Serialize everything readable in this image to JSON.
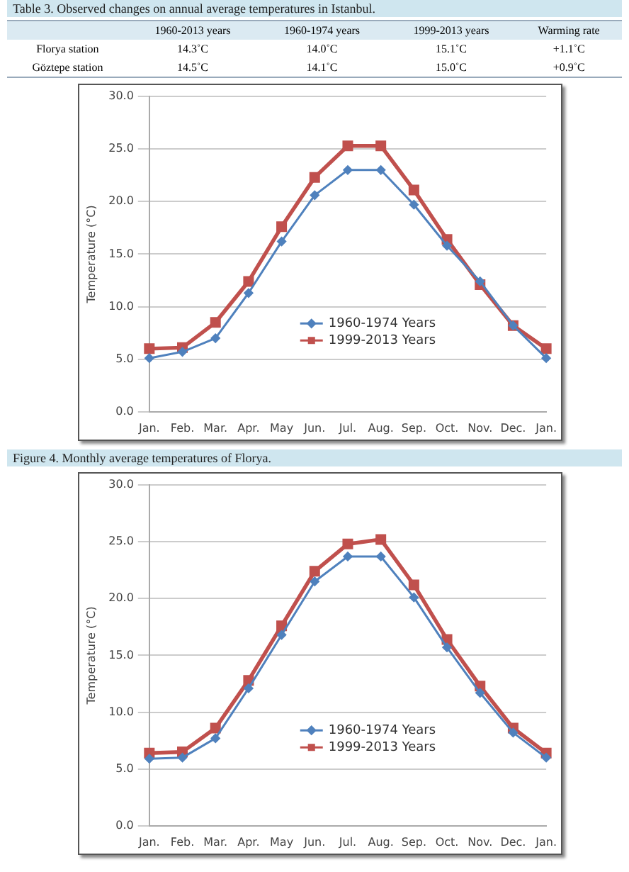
{
  "chart_data": [
    {
      "type": "other",
      "title": "Table 3. Observed changes on annual average temperatures in Istanbul.",
      "categories": [
        null,
        "1960-2013 years",
        "1960-1974 years",
        "1999-2013 years",
        "Warming rate"
      ],
      "y_categories": [
        "Florya station",
        "Göztepe station"
      ],
      "cell_labels": [
        [
          "14.3˚C",
          "14.0˚C",
          "15.1˚C",
          "+1.1˚C"
        ],
        [
          "14.5˚C",
          "14.1˚C",
          "15.0˚C",
          "+0.9˚C"
        ]
      ]
    },
    {
      "type": "line",
      "ylabel": "Temperature (°C)",
      "categories": [
        "Jan.",
        "Feb.",
        "Mar.",
        "Apr.",
        "May",
        "Jun.",
        "Jul.",
        "Aug.",
        "Sep.",
        "Oct.",
        "Nov.",
        "Dec.",
        "Jan."
      ],
      "series": [
        {
          "name": "1960-1974 Years",
          "color": "#4f81bd",
          "marker": "diamond",
          "values": [
            5.1,
            5.7,
            7.0,
            11.3,
            16.2,
            20.6,
            23.0,
            23.0,
            19.7,
            15.8,
            12.4,
            8.2,
            5.1
          ]
        },
        {
          "name": "1999-2013 Years",
          "color": "#c0504d",
          "marker": "square",
          "values": [
            6.0,
            6.1,
            8.5,
            12.4,
            17.6,
            22.3,
            25.3,
            25.3,
            21.1,
            16.4,
            12.1,
            8.2,
            6.0
          ]
        }
      ],
      "ylim": [
        0,
        30
      ],
      "yticks": [
        {
          "value": 0,
          "label": "0.0"
        },
        {
          "value": 5,
          "label": "5.0"
        },
        {
          "value": 10,
          "label": "10.0"
        },
        {
          "value": 15,
          "label": "15.0"
        },
        {
          "value": 20,
          "label": "20.0"
        },
        {
          "value": 25,
          "label": "25.0"
        },
        {
          "value": 30,
          "label": "30.0"
        }
      ],
      "grid": "y",
      "legend": "center",
      "annotations": [
        "Figure 4. Monthly average temperatures of Florya."
      ]
    },
    {
      "type": "line",
      "ylabel": "Temperature (°C)",
      "categories": [
        "Jan.",
        "Feb.",
        "Mar.",
        "Apr.",
        "May",
        "Jun.",
        "Jul.",
        "Aug.",
        "Sep.",
        "Oct.",
        "Nov.",
        "Dec.",
        "Jan."
      ],
      "series": [
        {
          "name": "1960-1974 Years",
          "color": "#4f81bd",
          "marker": "diamond",
          "values": [
            5.9,
            6.0,
            7.7,
            12.1,
            16.8,
            21.5,
            23.7,
            23.7,
            20.1,
            15.7,
            11.7,
            8.2,
            6.0
          ]
        },
        {
          "name": "1999-2013 Years",
          "color": "#c0504d",
          "marker": "square",
          "values": [
            6.4,
            6.5,
            8.6,
            12.8,
            17.6,
            22.4,
            24.8,
            25.2,
            21.2,
            16.4,
            12.3,
            8.6,
            6.4
          ]
        }
      ],
      "ylim": [
        0,
        30
      ],
      "yticks": [
        {
          "value": 0,
          "label": "0.0"
        },
        {
          "value": 5,
          "label": "5.0"
        },
        {
          "value": 10,
          "label": "10.0"
        },
        {
          "value": 15,
          "label": "15.0"
        },
        {
          "value": 20,
          "label": "20.0"
        },
        {
          "value": 25,
          "label": "25.0"
        },
        {
          "value": 30,
          "label": "30.0"
        }
      ],
      "grid": "y",
      "legend": "center"
    }
  ]
}
